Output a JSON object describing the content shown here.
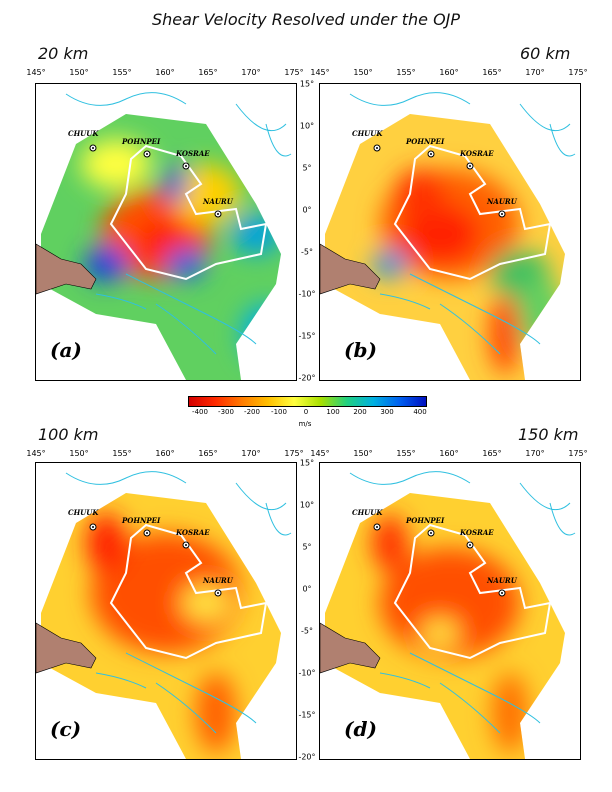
{
  "title": "Shear Velocity Resolved under the OJP",
  "panels": [
    {
      "depth": "20 km",
      "letter": "(a)"
    },
    {
      "depth": "60 km",
      "letter": "(b)"
    },
    {
      "depth": "100 km",
      "letter": "(c)"
    },
    {
      "depth": "150 km",
      "letter": "(d)"
    }
  ],
  "lon_ticks": [
    "145°",
    "150°",
    "155°",
    "160°",
    "165°",
    "170°",
    "175°"
  ],
  "lat_ticks": [
    "15°",
    "10°",
    "5°",
    "0°",
    "-5°",
    "-10°",
    "-15°",
    "-20°"
  ],
  "sites": [
    "CHUUK",
    "POHNPEI",
    "KOSRAE",
    "NAURU"
  ],
  "colorbar": {
    "ticks": [
      "-400",
      "-300",
      "-200",
      "-100",
      "0",
      "100",
      "200",
      "300",
      "400"
    ],
    "units": "m/s",
    "colors": [
      "#d40000",
      "#ff7a00",
      "#ffff40",
      "#20d080",
      "#0010c0"
    ]
  }
}
